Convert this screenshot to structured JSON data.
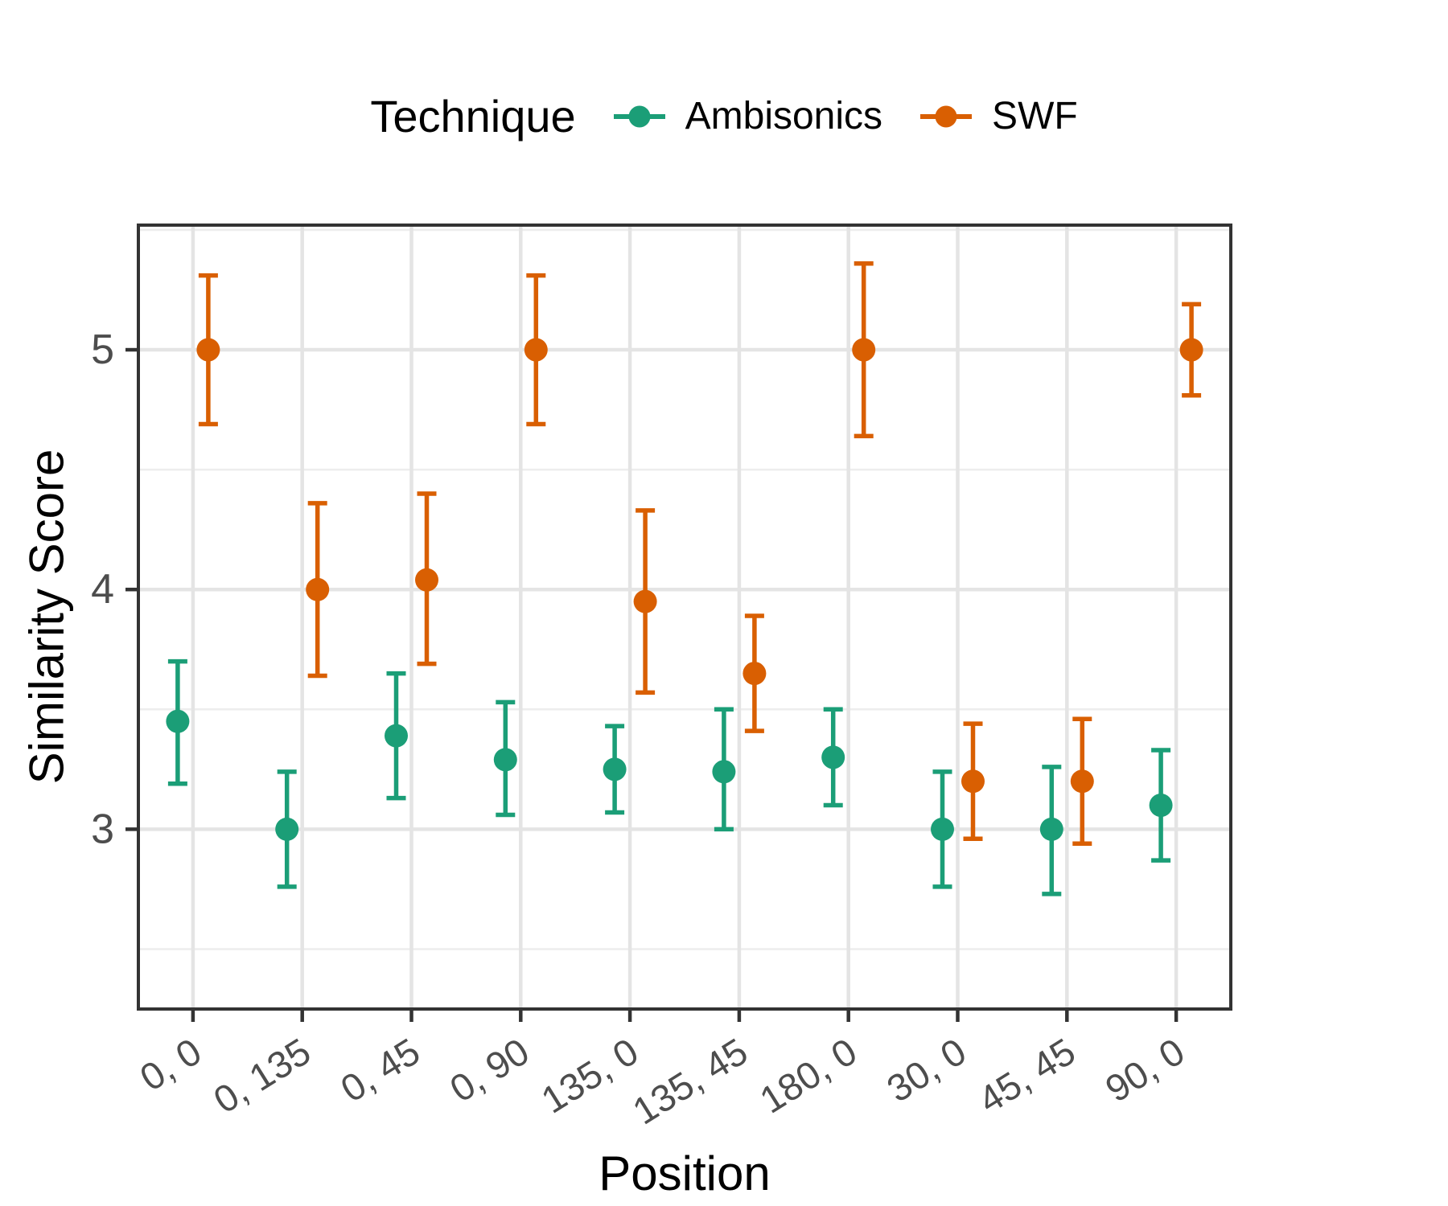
{
  "chart_data": {
    "type": "pointrange",
    "title": "",
    "xlabel": "Position",
    "ylabel": "Similarity Score",
    "legend": {
      "title": "Technique",
      "position": "top"
    },
    "categories": [
      "0, 0",
      "0, 135",
      "0, 45",
      "0, 90",
      "135, 0",
      "135, 45",
      "180, 0",
      "30, 0",
      "45, 45",
      "90, 0"
    ],
    "yticks": [
      3,
      4,
      5
    ],
    "minor_gridlines": [
      2.5,
      3.5,
      4.5,
      5.5
    ],
    "ylim": [
      2.25,
      5.52
    ],
    "grid": true,
    "series": [
      {
        "name": "Ambisonics",
        "color": "#1B9E77",
        "points": [
          {
            "category": "0, 0",
            "mean": 3.45,
            "lo": 3.19,
            "hi": 3.7
          },
          {
            "category": "0, 135",
            "mean": 3.0,
            "lo": 2.76,
            "hi": 3.24
          },
          {
            "category": "0, 45",
            "mean": 3.39,
            "lo": 3.13,
            "hi": 3.65
          },
          {
            "category": "0, 90",
            "mean": 3.29,
            "lo": 3.06,
            "hi": 3.53
          },
          {
            "category": "135, 0",
            "mean": 3.25,
            "lo": 3.07,
            "hi": 3.43
          },
          {
            "category": "135, 45",
            "mean": 3.24,
            "lo": 3.0,
            "hi": 3.5
          },
          {
            "category": "180, 0",
            "mean": 3.3,
            "lo": 3.1,
            "hi": 3.5
          },
          {
            "category": "30, 0",
            "mean": 3.0,
            "lo": 2.76,
            "hi": 3.24
          },
          {
            "category": "45, 45",
            "mean": 3.0,
            "lo": 2.73,
            "hi": 3.26
          },
          {
            "category": "90, 0",
            "mean": 3.1,
            "lo": 2.87,
            "hi": 3.33
          }
        ]
      },
      {
        "name": "SWF",
        "color": "#D95F02",
        "points": [
          {
            "category": "0, 0",
            "mean": 5.0,
            "lo": 4.69,
            "hi": 5.31
          },
          {
            "category": "0, 135",
            "mean": 4.0,
            "lo": 3.64,
            "hi": 4.36
          },
          {
            "category": "0, 45",
            "mean": 4.04,
            "lo": 3.69,
            "hi": 4.4
          },
          {
            "category": "0, 90",
            "mean": 5.0,
            "lo": 4.69,
            "hi": 5.31
          },
          {
            "category": "135, 0",
            "mean": 3.95,
            "lo": 3.57,
            "hi": 4.33
          },
          {
            "category": "135, 45",
            "mean": 3.65,
            "lo": 3.41,
            "hi": 3.89
          },
          {
            "category": "180, 0",
            "mean": 5.0,
            "lo": 4.64,
            "hi": 5.36
          },
          {
            "category": "30, 0",
            "mean": 3.2,
            "lo": 2.96,
            "hi": 3.44
          },
          {
            "category": "45, 45",
            "mean": 3.2,
            "lo": 2.94,
            "hi": 3.46
          },
          {
            "category": "90, 0",
            "mean": 5.0,
            "lo": 4.81,
            "hi": 5.19
          }
        ]
      }
    ],
    "theme": {
      "panel_background": "#FFFFFF",
      "panel_border": "#333333",
      "major_grid": "#E4E4E4",
      "minor_grid": "#EDEDED",
      "tick_color": "#333333",
      "tick_label_color": "#4D4D4D",
      "title_color": "#000000"
    }
  }
}
